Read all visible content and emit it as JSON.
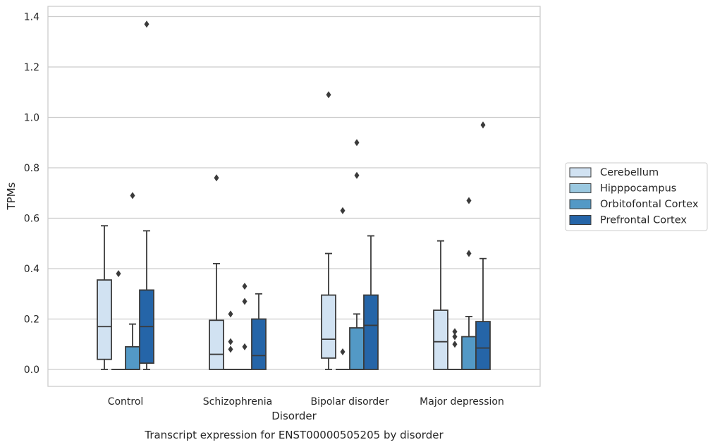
{
  "chart_data": {
    "type": "box",
    "caption": "Transcript expression for ENST00000505205 by disorder",
    "xlabel": "Disorder",
    "ylabel": "TPMs",
    "ylim": [
      -0.065,
      1.44
    ],
    "yticks": [
      "0.0",
      "0.2",
      "0.4",
      "0.6",
      "0.8",
      "1.0",
      "1.2",
      "1.4"
    ],
    "grid": "horizontal",
    "legend_position": "right",
    "categories": [
      "Control",
      "Schizophrenia",
      "Bipolar disorder",
      "Major depression"
    ],
    "series": [
      {
        "name": "Cerebellum",
        "color": "#d1e2f2",
        "boxes": [
          {
            "whisker_low": 0.0,
            "q1": 0.04,
            "median": 0.17,
            "q3": 0.355,
            "whisker_high": 0.57,
            "outliers": []
          },
          {
            "whisker_low": 0.0,
            "q1": 0.0,
            "median": 0.06,
            "q3": 0.195,
            "whisker_high": 0.42,
            "outliers": [
              0.76
            ]
          },
          {
            "whisker_low": 0.0,
            "q1": 0.045,
            "median": 0.12,
            "q3": 0.295,
            "whisker_high": 0.46,
            "outliers": [
              1.09
            ]
          },
          {
            "whisker_low": 0.0,
            "q1": 0.0,
            "median": 0.11,
            "q3": 0.235,
            "whisker_high": 0.51,
            "outliers": []
          }
        ]
      },
      {
        "name": "Hipppocampus",
        "color": "#9ac8e0",
        "boxes": [
          {
            "whisker_low": 0.0,
            "q1": 0.0,
            "median": 0.0,
            "q3": 0.0,
            "whisker_high": 0.0,
            "outliers": [
              0.38
            ]
          },
          {
            "whisker_low": 0.0,
            "q1": 0.0,
            "median": 0.0,
            "q3": 0.0,
            "whisker_high": 0.0,
            "outliers": [
              0.08,
              0.11,
              0.22
            ]
          },
          {
            "whisker_low": 0.0,
            "q1": 0.0,
            "median": 0.0,
            "q3": 0.0,
            "whisker_high": 0.0,
            "outliers": [
              0.07,
              0.63
            ]
          },
          {
            "whisker_low": 0.0,
            "q1": 0.0,
            "median": 0.0,
            "q3": 0.0,
            "whisker_high": 0.0,
            "outliers": [
              0.1,
              0.13,
              0.15
            ]
          }
        ]
      },
      {
        "name": "Orbitofontal Cortex",
        "color": "#5399c6",
        "boxes": [
          {
            "whisker_low": 0.0,
            "q1": 0.0,
            "median": 0.0,
            "q3": 0.09,
            "whisker_high": 0.18,
            "outliers": [
              0.69
            ]
          },
          {
            "whisker_low": 0.0,
            "q1": 0.0,
            "median": 0.0,
            "q3": 0.0,
            "whisker_high": 0.0,
            "outliers": [
              0.09,
              0.27,
              0.33
            ]
          },
          {
            "whisker_low": 0.0,
            "q1": 0.0,
            "median": 0.0,
            "q3": 0.165,
            "whisker_high": 0.22,
            "outliers": [
              0.77,
              0.9
            ]
          },
          {
            "whisker_low": 0.0,
            "q1": 0.0,
            "median": 0.0,
            "q3": 0.13,
            "whisker_high": 0.21,
            "outliers": [
              0.46,
              0.67
            ]
          }
        ]
      },
      {
        "name": "Prefrontal Cortex",
        "color": "#2565a8",
        "boxes": [
          {
            "whisker_low": 0.0,
            "q1": 0.025,
            "median": 0.17,
            "q3": 0.315,
            "whisker_high": 0.55,
            "outliers": [
              1.37
            ]
          },
          {
            "whisker_low": 0.0,
            "q1": 0.0,
            "median": 0.055,
            "q3": 0.2,
            "whisker_high": 0.3,
            "outliers": []
          },
          {
            "whisker_low": 0.0,
            "q1": 0.0,
            "median": 0.175,
            "q3": 0.295,
            "whisker_high": 0.53,
            "outliers": []
          },
          {
            "whisker_low": 0.0,
            "q1": 0.0,
            "median": 0.085,
            "q3": 0.19,
            "whisker_high": 0.44,
            "outliers": [
              0.97
            ]
          }
        ]
      }
    ]
  }
}
